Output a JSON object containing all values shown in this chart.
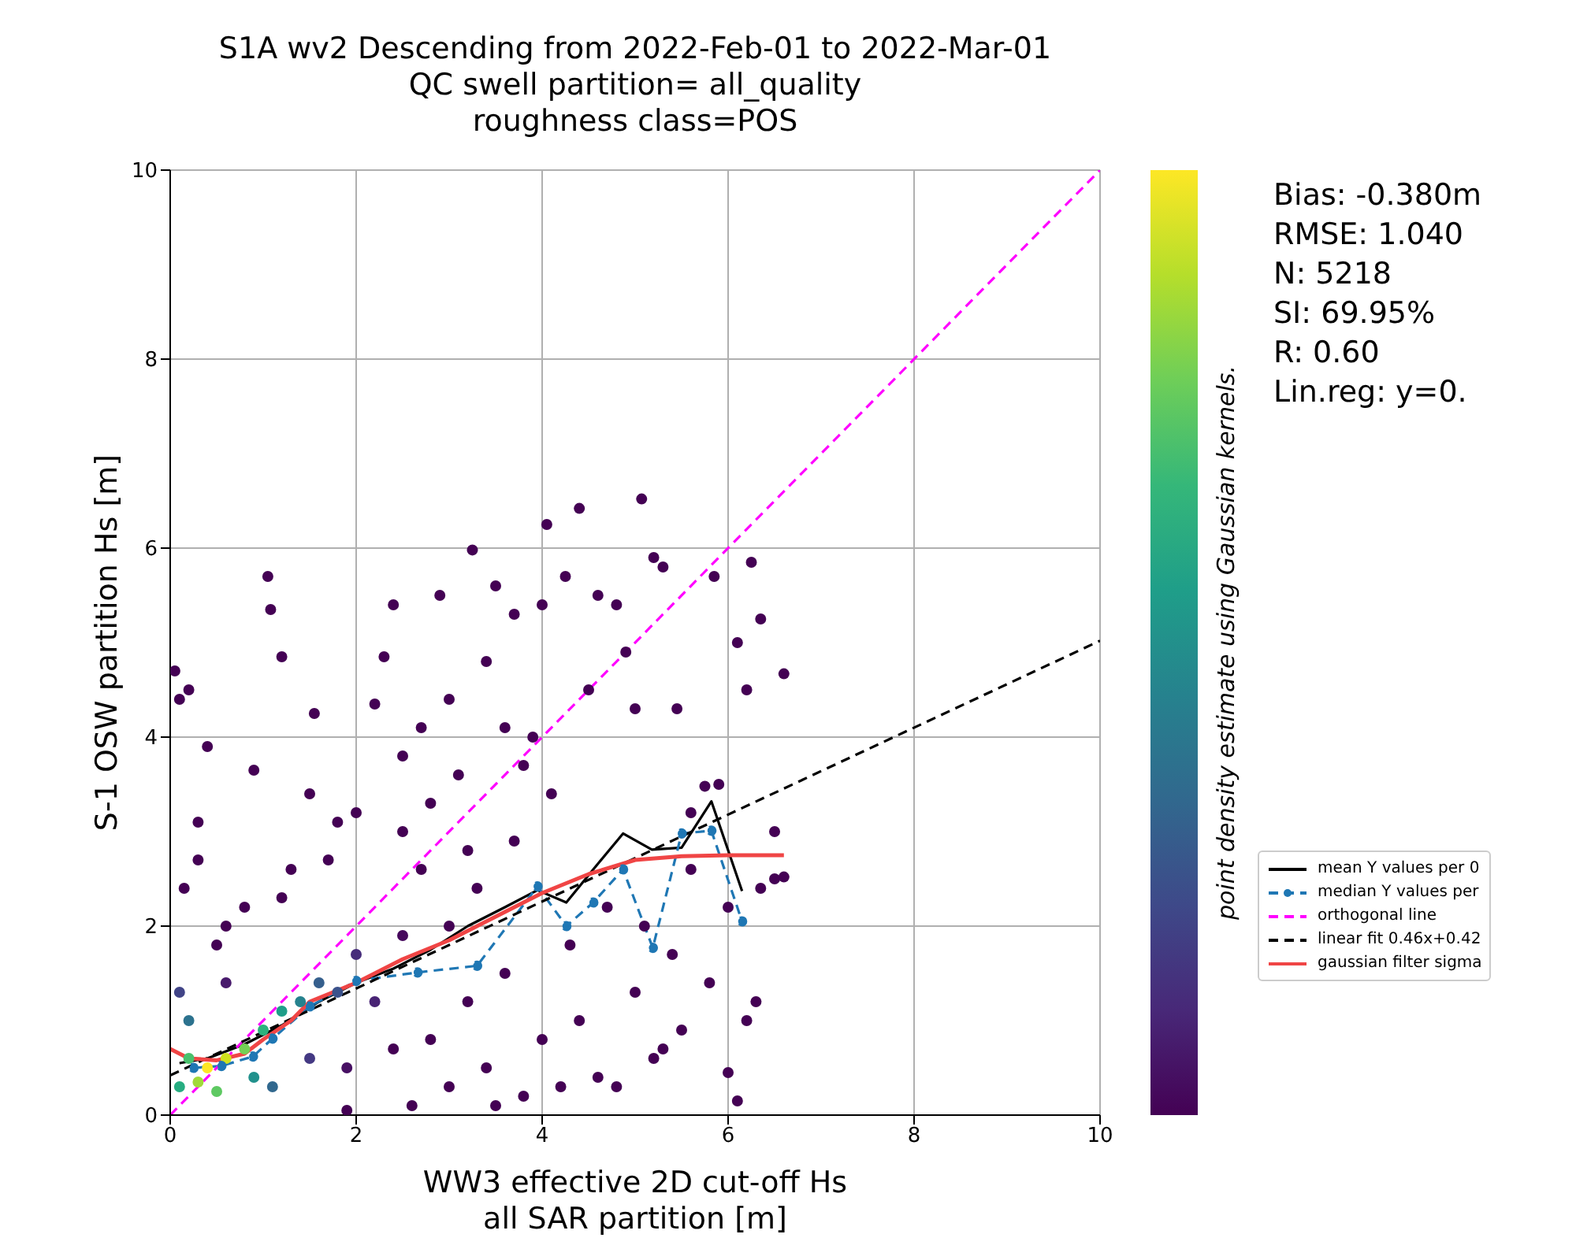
{
  "chart_data": {
    "type": "scatter",
    "title": "S1A wv2 Descending from 2022-Feb-01 to 2022-Mar-01\nQC swell partition= all_quality\nroughness class=POS",
    "xlabel": "WW3 effective 2D cut-off Hs\nall SAR partition [m]",
    "ylabel": "S-1 OSW partition Hs [m]",
    "clabel": "point density estimate using Gaussian kernels.",
    "annotations": [
      "Bias: -0.380m",
      "RMSE: 1.040",
      "N: 5218",
      "SI: 69.95%",
      "R: 0.60",
      "Lin.reg: y=0."
    ],
    "xlim": [
      0,
      10
    ],
    "xticks": [
      0,
      2,
      4,
      6,
      8,
      10
    ],
    "ylim": [
      0,
      10
    ],
    "yticks": [
      0,
      2,
      4,
      6,
      8,
      10
    ],
    "grid": true,
    "legend": "right",
    "series": [
      {
        "marker": "circle",
        "x": [
          0.4,
          0.6,
          0.3,
          0.8,
          0.2,
          0.5,
          1.0,
          0.9,
          0.1,
          1.2,
          1.4,
          0.2,
          1.1,
          1.6,
          1.8,
          0.1,
          1.5,
          2.0,
          2.2,
          0.6,
          1.9,
          2.5,
          0.05,
          0.1,
          0.2,
          0.4,
          0.3,
          0.15,
          0.6,
          0.9,
          1.05,
          1.08,
          1.2,
          1.3,
          1.55,
          1.5,
          1.8,
          2.0,
          2.2,
          2.3,
          2.4,
          2.5,
          2.7,
          2.8,
          2.9,
          3.0,
          3.1,
          3.25,
          3.2,
          3.4,
          3.5,
          3.6,
          3.7,
          3.8,
          3.9,
          4.0,
          4.05,
          4.25,
          4.4,
          4.5,
          4.6,
          4.8,
          4.9,
          5.0,
          5.07,
          5.2,
          5.3,
          5.45,
          5.6,
          5.85,
          6.1,
          6.2,
          6.25,
          6.35,
          6.6,
          6.5,
          6.35,
          6.5,
          6.6,
          6.2,
          6.3,
          6.0,
          6.1,
          5.8,
          5.5,
          5.2,
          5.3,
          5.0,
          4.8,
          4.6,
          4.4,
          4.2,
          4.0,
          3.8,
          3.6,
          3.4,
          3.2,
          3.0,
          2.8,
          2.6,
          2.4,
          3.0,
          3.3,
          3.7,
          4.1,
          4.3,
          4.7,
          5.1,
          5.6,
          5.4,
          2.7,
          2.5,
          1.7,
          1.2,
          0.8,
          0.5,
          0.3,
          5.9,
          5.75,
          6.0,
          1.9,
          3.5
        ],
        "values": [
          0.5,
          0.6,
          0.35,
          0.7,
          0.6,
          0.25,
          0.9,
          0.4,
          0.3,
          1.1,
          1.2,
          1.0,
          0.3,
          1.4,
          1.3,
          1.3,
          0.6,
          1.7,
          1.2,
          1.4,
          0.5,
          1.9,
          4.7,
          4.4,
          4.5,
          3.9,
          3.1,
          2.4,
          2.0,
          3.65,
          5.7,
          5.35,
          4.85,
          2.6,
          4.25,
          3.4,
          3.1,
          3.2,
          4.35,
          4.85,
          5.4,
          3.8,
          4.1,
          3.3,
          5.5,
          4.4,
          3.6,
          5.98,
          2.8,
          4.8,
          5.6,
          4.1,
          5.3,
          3.7,
          4.0,
          5.4,
          6.25,
          5.7,
          6.42,
          4.5,
          5.5,
          5.4,
          4.9,
          4.3,
          6.52,
          5.9,
          5.8,
          4.3,
          3.2,
          5.7,
          5.0,
          4.5,
          5.85,
          5.25,
          4.67,
          3.0,
          2.4,
          2.5,
          2.52,
          1.0,
          1.2,
          0.45,
          0.15,
          1.4,
          0.9,
          0.6,
          0.7,
          1.3,
          0.3,
          0.4,
          1.0,
          0.3,
          0.8,
          0.2,
          1.5,
          0.5,
          1.2,
          0.3,
          0.8,
          0.1,
          0.7,
          2.0,
          2.4,
          2.9,
          3.4,
          1.8,
          2.2,
          2.0,
          2.6,
          1.7,
          2.6,
          3.0,
          2.7,
          2.3,
          2.2,
          1.8,
          2.7,
          3.5,
          3.48,
          2.2,
          0.05,
          0.1
        ],
        "colors": [
          "#fde725",
          "#d0e11c",
          "#a0da39",
          "#73d056",
          "#4ac16d",
          "#5ec962",
          "#2db27d",
          "#21918c",
          "#27ad81",
          "#1f9e89",
          "#26828e",
          "#2c728e",
          "#31688e",
          "#355f8d",
          "#3b528b",
          "#414487",
          "#443983",
          "#472d7b",
          "#482374",
          "#481a6c",
          "#471063",
          "#46085c",
          "#440154",
          "#440154",
          "#440154",
          "#440154",
          "#440154",
          "#440154",
          "#440154",
          "#440154",
          "#440154",
          "#440154",
          "#440154",
          "#440154",
          "#440154",
          "#440154",
          "#440154",
          "#440154",
          "#440154",
          "#440154",
          "#440154",
          "#440154",
          "#440154",
          "#440154",
          "#440154",
          "#440154",
          "#440154",
          "#440154",
          "#440154",
          "#440154",
          "#440154",
          "#440154",
          "#440154",
          "#440154",
          "#440154",
          "#440154",
          "#440154",
          "#440154",
          "#440154",
          "#440154",
          "#440154",
          "#440154",
          "#440154",
          "#440154",
          "#440154",
          "#440154",
          "#440154",
          "#440154",
          "#440154",
          "#440154",
          "#440154",
          "#440154",
          "#440154",
          "#440154",
          "#440154",
          "#440154",
          "#440154",
          "#440154",
          "#440154",
          "#440154",
          "#440154",
          "#440154",
          "#440154",
          "#440154",
          "#440154",
          "#440154",
          "#440154",
          "#440154",
          "#440154",
          "#440154",
          "#440154",
          "#440154",
          "#440154",
          "#440154",
          "#440154",
          "#440154",
          "#440154",
          "#440154",
          "#440154",
          "#440154",
          "#440154",
          "#440154",
          "#440154",
          "#440154",
          "#440154",
          "#440154",
          "#440154",
          "#440154",
          "#440154",
          "#440154",
          "#440154",
          "#440154",
          "#440154",
          "#440154",
          "#440154",
          "#440154",
          "#440154",
          "#440154",
          "#440154",
          "#440154",
          "#440154",
          "#440154"
        ]
      },
      {
        "type": "line",
        "name": "mean Y values per 0",
        "color": "#000000",
        "marker": "none",
        "line_style": "solid",
        "x": [
          0.1,
          0.4,
          0.8,
          1.2,
          1.6,
          2.0,
          2.4,
          2.8,
          3.2,
          3.6,
          3.95,
          4.26,
          4.55,
          4.87,
          5.18,
          5.5,
          5.82,
          6.15
        ],
        "values": [
          0.55,
          0.6,
          0.75,
          0.95,
          1.2,
          1.4,
          1.55,
          1.75,
          2.0,
          2.2,
          2.38,
          2.25,
          2.6,
          2.98,
          2.81,
          2.83,
          3.32,
          2.37
        ]
      },
      {
        "type": "line",
        "name": "median Y values per",
        "color": "#1f77b4",
        "marker": "circle",
        "line_style": "dashed",
        "x": [
          0.25,
          0.55,
          0.89,
          1.1,
          1.5,
          2.0,
          2.66,
          3.3,
          3.95,
          4.26,
          4.55,
          4.87,
          5.19,
          5.5,
          5.82,
          6.15
        ],
        "values": [
          0.5,
          0.52,
          0.62,
          0.81,
          1.15,
          1.42,
          1.51,
          1.58,
          2.42,
          2.0,
          2.25,
          2.6,
          1.77,
          2.98,
          3.01,
          2.05
        ]
      },
      {
        "type": "line",
        "name": "orthogonal line",
        "color": "#ff00ff",
        "marker": "none",
        "line_style": "dashed",
        "x": [
          0,
          10
        ],
        "values": [
          0,
          10
        ]
      },
      {
        "type": "line",
        "name": "linear fit 0.46x+0.42",
        "color": "#000000",
        "marker": "none",
        "line_style": "dashed",
        "x": [
          0,
          10
        ],
        "values": [
          0.42,
          5.02
        ]
      },
      {
        "type": "line",
        "name": "gaussian filter sigma",
        "color": "#f04545",
        "marker": "none",
        "line_style": "solid",
        "x": [
          0,
          0.2,
          0.5,
          0.8,
          1.0,
          1.3,
          1.5,
          2.0,
          2.5,
          3.0,
          3.5,
          4.0,
          4.5,
          5.0,
          5.5,
          6.0,
          6.6
        ],
        "values": [
          0.7,
          0.6,
          0.58,
          0.65,
          0.8,
          1.0,
          1.2,
          1.4,
          1.65,
          1.85,
          2.1,
          2.35,
          2.55,
          2.7,
          2.74,
          2.75,
          2.75
        ]
      }
    ]
  }
}
